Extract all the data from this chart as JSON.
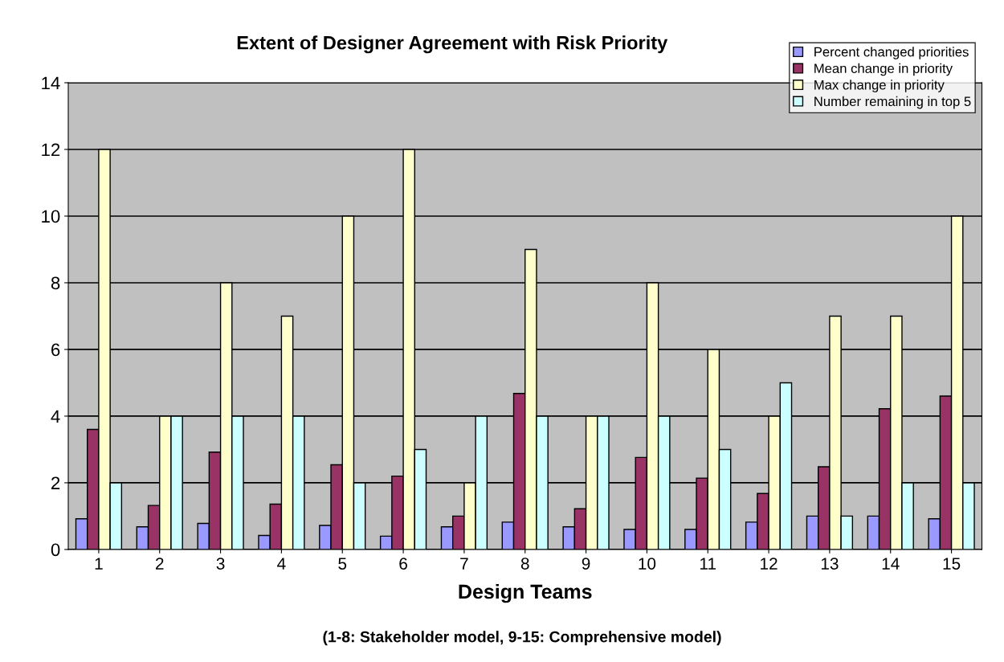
{
  "chart_data": {
    "type": "bar",
    "title": "Extent of Designer Agreement with Risk Priority",
    "xlabel": "Design Teams",
    "annotations": [
      "(1-8: Stakeholder model, 9-15: Comprehensive model)"
    ],
    "categories": [
      "1",
      "2",
      "3",
      "4",
      "5",
      "6",
      "7",
      "8",
      "9",
      "10",
      "11",
      "12",
      "13",
      "14",
      "15"
    ],
    "series": [
      {
        "name": "Percent changed priorities",
        "color": "#9999ff",
        "values": [
          0.92,
          0.68,
          0.78,
          0.42,
          0.72,
          0.4,
          0.68,
          0.82,
          0.68,
          0.6,
          0.6,
          0.82,
          1.0,
          1.0,
          0.92
        ]
      },
      {
        "name": "Mean change in priority",
        "color": "#993366",
        "values": [
          3.6,
          1.32,
          2.92,
          1.36,
          2.54,
          2.2,
          1.0,
          4.68,
          1.22,
          2.76,
          2.14,
          1.68,
          2.48,
          4.22,
          4.6
        ]
      },
      {
        "name": "Max change in priority",
        "color": "#ffffcc",
        "values": [
          12,
          4,
          8,
          7,
          10,
          12,
          2,
          9,
          4,
          8,
          6,
          4,
          7,
          7,
          10
        ]
      },
      {
        "name": "Number remaining in top 5",
        "color": "#ccffff",
        "values": [
          2,
          4,
          4,
          4,
          2,
          3,
          4,
          4,
          4,
          4,
          3,
          5,
          1,
          2,
          2
        ]
      }
    ],
    "ylim": [
      0,
      14
    ],
    "yticks": [
      0,
      2,
      4,
      6,
      8,
      10,
      12,
      14
    ],
    "grid": "y",
    "legend": "top right"
  }
}
